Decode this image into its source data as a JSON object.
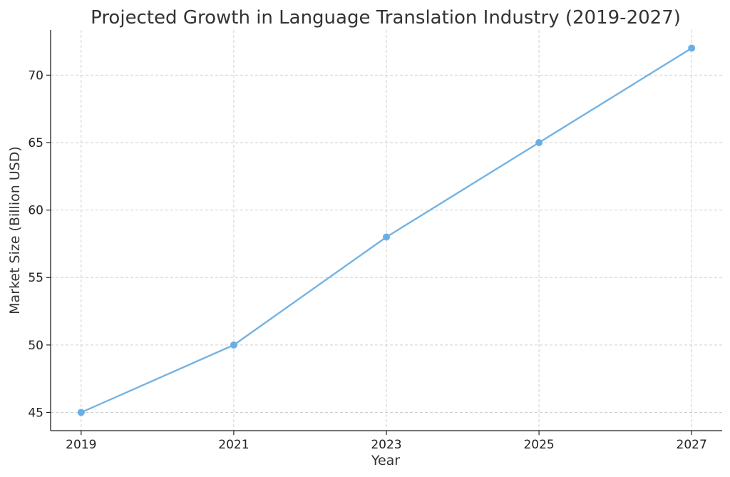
{
  "chart_data": {
    "type": "line",
    "title": "Projected Growth in Language Translation Industry (2019-2027)",
    "xlabel": "Year",
    "ylabel": "Market Size (Billion USD)",
    "x": [
      2019,
      2021,
      2023,
      2025,
      2027
    ],
    "series": [
      {
        "values": [
          45,
          50,
          58,
          65,
          72
        ]
      }
    ],
    "x_ticks": [
      2019,
      2021,
      2023,
      2025,
      2027
    ],
    "y_ticks": [
      45,
      50,
      55,
      60,
      65,
      70
    ],
    "xlim": [
      2018.6,
      2027.4
    ],
    "ylim": [
      43.65,
      73.35
    ],
    "grid": true,
    "line_color": "#74b3e3",
    "marker_color": "#6aaee6"
  }
}
